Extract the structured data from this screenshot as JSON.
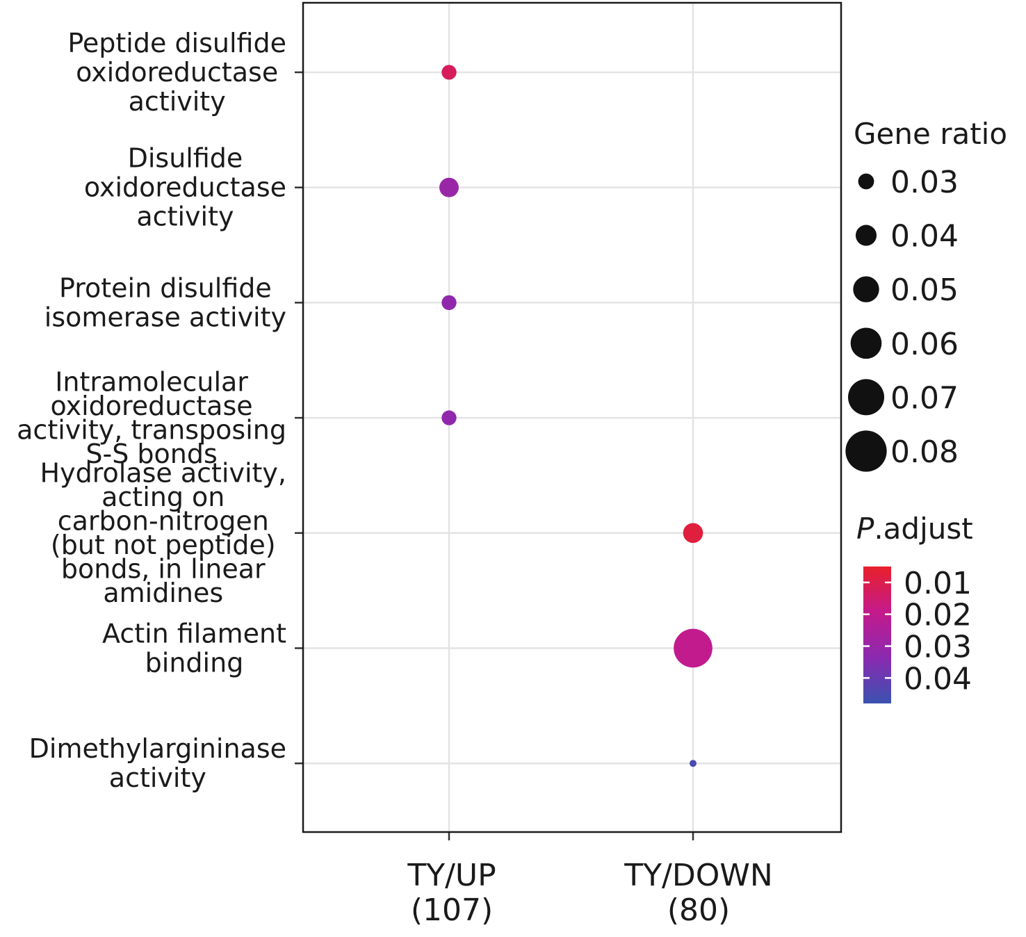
{
  "chart_data": {
    "type": "scatter",
    "categories_y": [
      [
        "Peptide disulfide",
        "oxidoreductase",
        "activity"
      ],
      [
        "Disulfide",
        "oxidoreductase",
        "activity"
      ],
      [
        "Protein disulfide",
        "isomerase activity"
      ],
      [
        "Intramolecular",
        "oxidoreductase",
        "activity, transposing",
        "S-S bonds"
      ],
      [
        "Hydrolase activity,",
        "acting on",
        "carbon-nitrogen",
        "(but not peptide)",
        "bonds, in linear",
        "amidines"
      ],
      [
        "Actin filament",
        "binding"
      ],
      [
        "Dimethylargininase",
        "activity"
      ]
    ],
    "categories_x": [
      [
        "TY/UP",
        "(107)"
      ],
      [
        "TY/DOWN",
        "(80)"
      ]
    ],
    "points": [
      {
        "x": 0,
        "y": 0,
        "gene_ratio": 0.028,
        "p_adjust": 0.012
      },
      {
        "x": 0,
        "y": 1,
        "gene_ratio": 0.037,
        "p_adjust": 0.03
      },
      {
        "x": 0,
        "y": 2,
        "gene_ratio": 0.028,
        "p_adjust": 0.032
      },
      {
        "x": 0,
        "y": 3,
        "gene_ratio": 0.028,
        "p_adjust": 0.032
      },
      {
        "x": 1,
        "y": 4,
        "gene_ratio": 0.038,
        "p_adjust": 0.008
      },
      {
        "x": 1,
        "y": 5,
        "gene_ratio": 0.075,
        "p_adjust": 0.02
      },
      {
        "x": 1,
        "y": 6,
        "gene_ratio": 0.0125,
        "p_adjust": 0.045
      }
    ],
    "size_legend": {
      "title": "Gene ratio",
      "values": [
        0.03,
        0.04,
        0.05,
        0.06,
        0.07,
        0.08
      ],
      "labels": [
        "0.03",
        "0.04",
        "0.05",
        "0.06",
        "0.07",
        "0.08"
      ]
    },
    "color_legend": {
      "title_italic": "P",
      "title_rest": ".adjust",
      "range": [
        0.005,
        0.048
      ],
      "ticks": [
        0.01,
        0.02,
        0.03,
        0.04
      ],
      "labels": [
        "0.01",
        "0.02",
        "0.03",
        "0.04"
      ],
      "colors": [
        "#e8202a",
        "#c41a8c",
        "#8a2ab0",
        "#3a52b0"
      ]
    },
    "grid": true,
    "legend_position": "right"
  }
}
